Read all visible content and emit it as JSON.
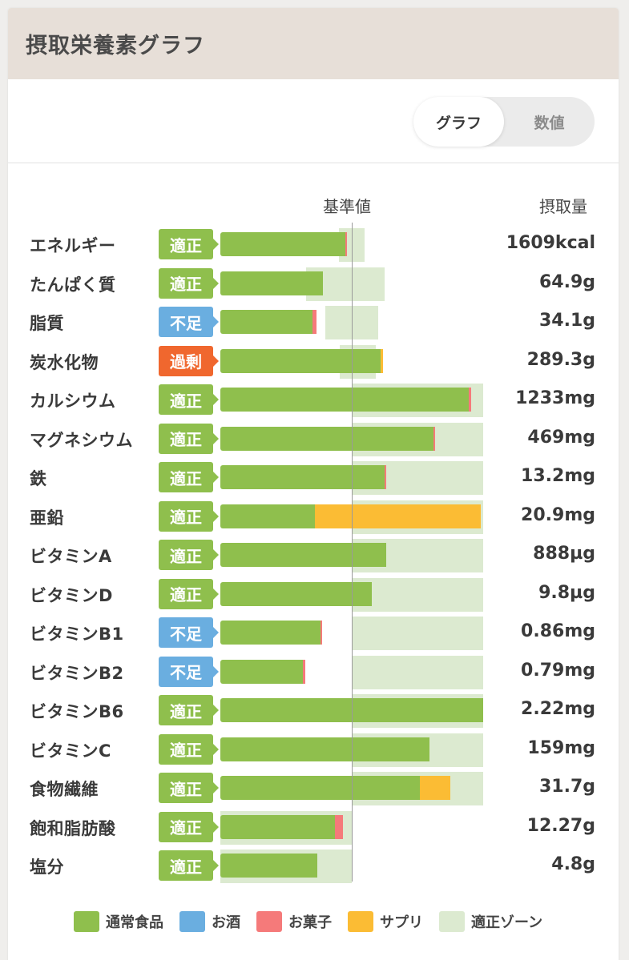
{
  "header": {
    "title": "摂取栄養素グラフ"
  },
  "toggle": {
    "graph_label": "グラフ",
    "number_label": "数値",
    "selected": "グラフ"
  },
  "columns": {
    "base_label": "基準値",
    "intake_label": "摂取量"
  },
  "colors": {
    "food": "#8fbf4d",
    "alcohol": "#6aaee0",
    "snack": "#f57a7a",
    "supplement": "#fbbc34",
    "zone": "#dcead0",
    "status_ok": "#8fbf4d",
    "status_low": "#6aaee0",
    "status_over": "#f0672e"
  },
  "legend": [
    {
      "label": "通常食品",
      "color": "#8fbf4d"
    },
    {
      "label": "お酒",
      "color": "#6aaee0"
    },
    {
      "label": "お菓子",
      "color": "#f57a7a"
    },
    {
      "label": "サプリ",
      "color": "#fbbc34"
    },
    {
      "label": "適正ゾーン",
      "color": "#dcead0"
    }
  ],
  "chart_data": {
    "type": "bar",
    "reference_label": "基準値",
    "unit_note": "values as percent of reference (基準値 = 100)",
    "rows": [
      {
        "name": "エネルギー",
        "status": "適正",
        "status_type": "ok",
        "value_text": "1609kcal",
        "food": 95,
        "snack": 1.5,
        "supplement": 0,
        "zone": [
          90,
          110
        ]
      },
      {
        "name": "たんぱく質",
        "status": "適正",
        "status_type": "ok",
        "value_text": "64.9g",
        "food": 78,
        "snack": 0,
        "supplement": 0,
        "zone": [
          65,
          125
        ]
      },
      {
        "name": "脂質",
        "status": "不足",
        "status_type": "low",
        "value_text": "34.1g",
        "food": 70,
        "snack": 3,
        "supplement": 0,
        "zone": [
          80,
          120
        ]
      },
      {
        "name": "炭水化物",
        "status": "過剰",
        "status_type": "over",
        "value_text": "289.3g",
        "food": 122,
        "snack": 0,
        "supplement": 2,
        "zone": [
          91,
          118
        ]
      },
      {
        "name": "カルシウム",
        "status": "適正",
        "status_type": "ok",
        "value_text": "1233mg",
        "food": 189,
        "snack": 2,
        "supplement": 0,
        "zone": [
          100,
          200
        ]
      },
      {
        "name": "マグネシウム",
        "status": "適正",
        "status_type": "ok",
        "value_text": "469mg",
        "food": 162,
        "snack": 1,
        "supplement": 0,
        "zone": [
          100,
          200
        ]
      },
      {
        "name": "鉄",
        "status": "適正",
        "status_type": "ok",
        "value_text": "13.2mg",
        "food": 125,
        "snack": 1,
        "supplement": 0,
        "zone": [
          100,
          200
        ]
      },
      {
        "name": "亜鉛",
        "status": "適正",
        "status_type": "ok",
        "value_text": "20.9mg",
        "food": 72,
        "snack": 0,
        "supplement": 126,
        "zone": [
          100,
          200
        ]
      },
      {
        "name": "ビタミンA",
        "status": "適正",
        "status_type": "ok",
        "value_text": "888µg",
        "food": 126,
        "snack": 0,
        "supplement": 0,
        "zone": [
          100,
          200
        ]
      },
      {
        "name": "ビタミンD",
        "status": "適正",
        "status_type": "ok",
        "value_text": "9.8µg",
        "food": 115,
        "snack": 0,
        "supplement": 0,
        "zone": [
          100,
          200
        ]
      },
      {
        "name": "ビタミンB1",
        "status": "不足",
        "status_type": "low",
        "value_text": "0.86mg",
        "food": 76,
        "snack": 1,
        "supplement": 0,
        "zone": [
          100,
          200
        ]
      },
      {
        "name": "ビタミンB2",
        "status": "不足",
        "status_type": "low",
        "value_text": "0.79mg",
        "food": 63,
        "snack": 1.5,
        "supplement": 0,
        "zone": [
          100,
          200
        ]
      },
      {
        "name": "ビタミンB6",
        "status": "適正",
        "status_type": "ok",
        "value_text": "2.22mg",
        "food": 200,
        "snack": 0,
        "supplement": 0,
        "zone": [
          100,
          200
        ]
      },
      {
        "name": "ビタミンC",
        "status": "適正",
        "status_type": "ok",
        "value_text": "159mg",
        "food": 159,
        "snack": 0,
        "supplement": 0,
        "zone": [
          100,
          200
        ]
      },
      {
        "name": "食物繊維",
        "status": "適正",
        "status_type": "ok",
        "value_text": "31.7g",
        "food": 152,
        "snack": 0,
        "supplement": 23,
        "zone": [
          100,
          200
        ]
      },
      {
        "name": "飽和脂肪酸",
        "status": "適正",
        "status_type": "ok",
        "value_text": "12.27g",
        "food": 87,
        "snack": 6,
        "supplement": 0,
        "zone": [
          0,
          100
        ]
      },
      {
        "name": "塩分",
        "status": "適正",
        "status_type": "ok",
        "value_text": "4.8g",
        "food": 74,
        "snack": 0,
        "supplement": 0,
        "zone": [
          0,
          100
        ]
      }
    ]
  }
}
